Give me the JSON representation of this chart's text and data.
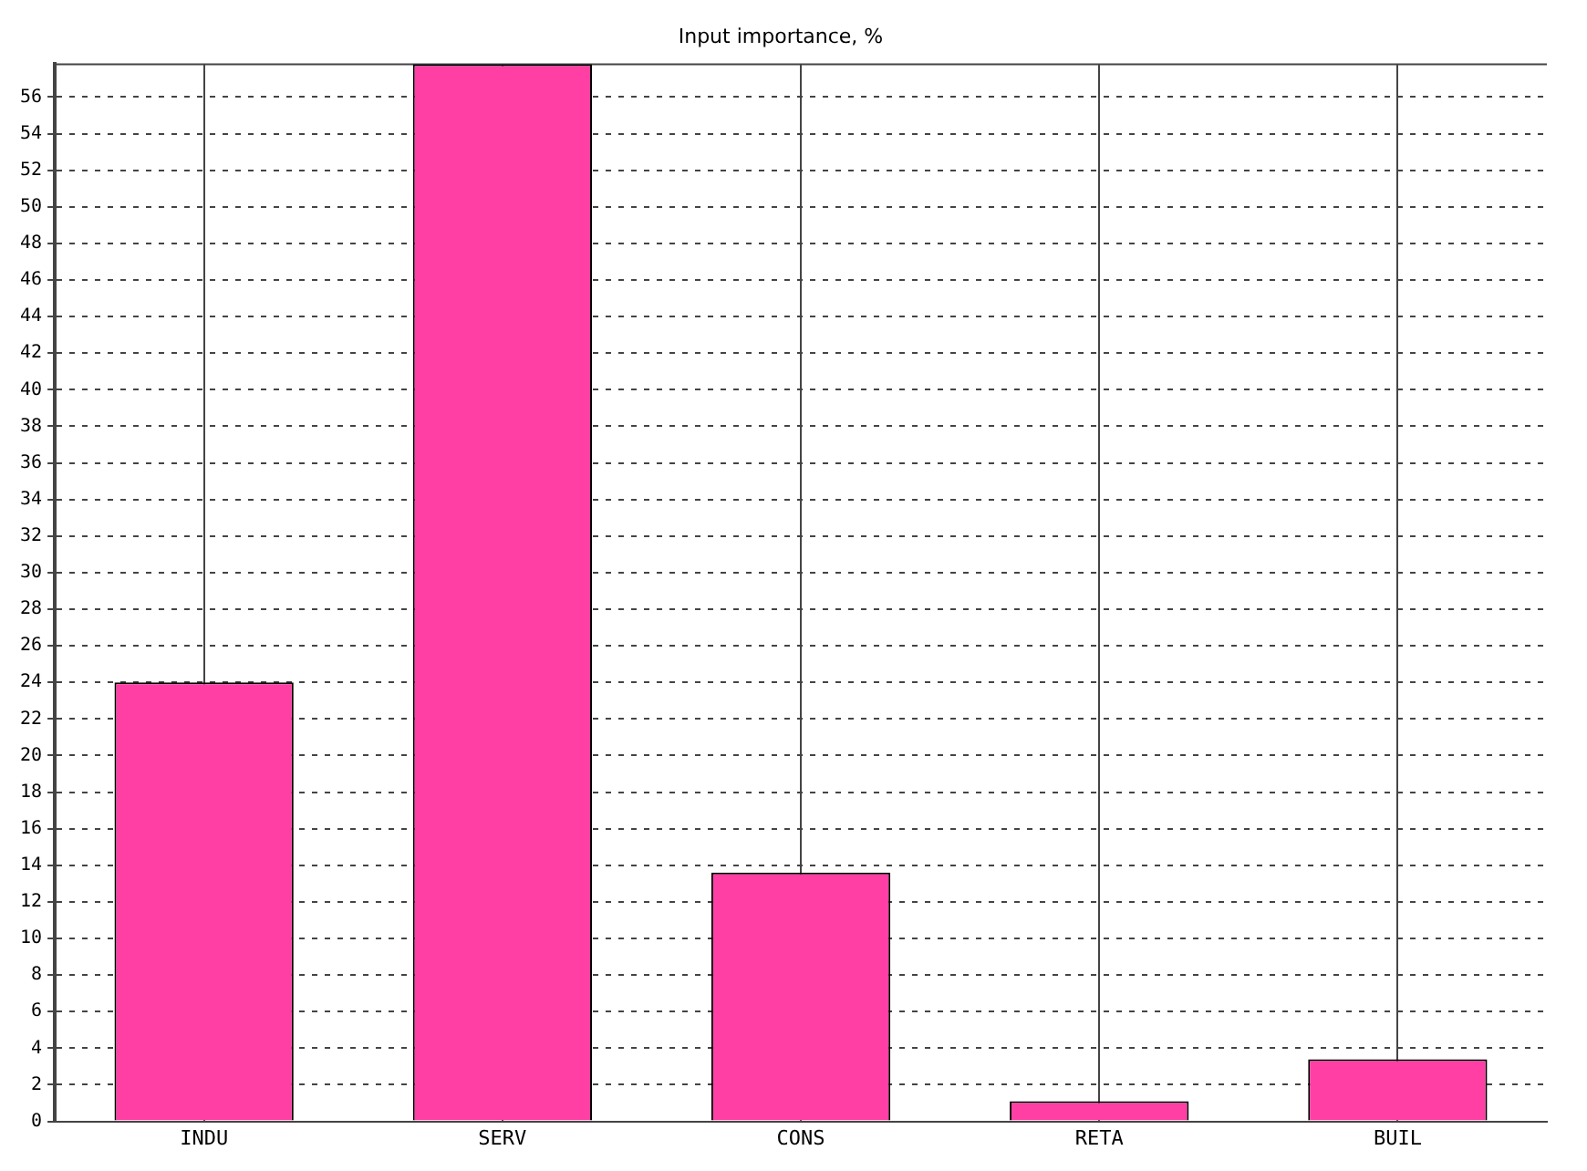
{
  "chart_data": {
    "type": "bar",
    "title": "Input importance, %",
    "categories": [
      "INDU",
      "SERV",
      "CONS",
      "RETA",
      "BUIL"
    ],
    "values": [
      24,
      57.8,
      13.6,
      1.1,
      3.4
    ],
    "color": "#ff3fa4",
    "ylim": [
      0,
      57.8
    ],
    "yticks": [
      0,
      2,
      4,
      6,
      8,
      10,
      12,
      14,
      16,
      18,
      20,
      22,
      24,
      26,
      28,
      30,
      32,
      34,
      36,
      38,
      40,
      42,
      44,
      46,
      48,
      50,
      52,
      54,
      56
    ],
    "grid": true
  }
}
